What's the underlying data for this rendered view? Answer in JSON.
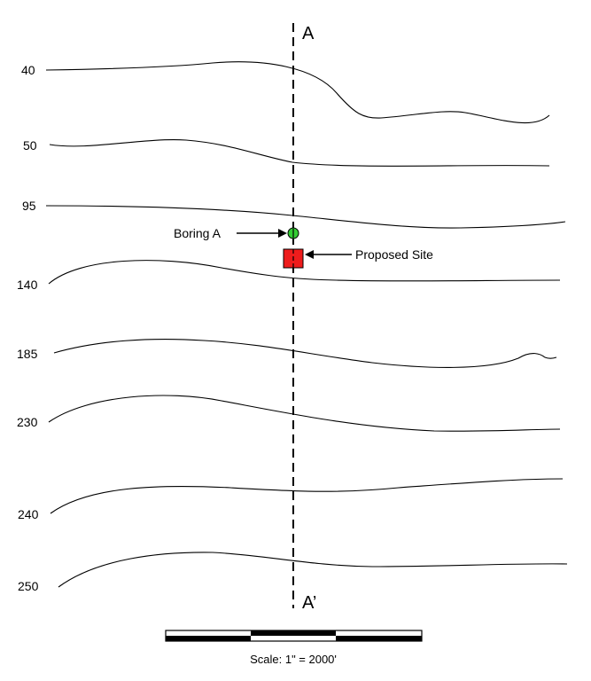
{
  "section": {
    "start_label": "A",
    "end_label": "A’"
  },
  "contours": [
    {
      "elevation": "40"
    },
    {
      "elevation": "50"
    },
    {
      "elevation": "95"
    },
    {
      "elevation": "140"
    },
    {
      "elevation": "185"
    },
    {
      "elevation": "230"
    },
    {
      "elevation": "240"
    },
    {
      "elevation": "250"
    }
  ],
  "features": {
    "boring": {
      "label": "Boring A",
      "color": "#33cc33"
    },
    "site": {
      "label": "Proposed Site",
      "color": "#ee1c1c"
    }
  },
  "scale": {
    "caption": "Scale: 1\" = 2000'"
  },
  "colors": {
    "line": "#000000",
    "background": "#ffffff"
  }
}
